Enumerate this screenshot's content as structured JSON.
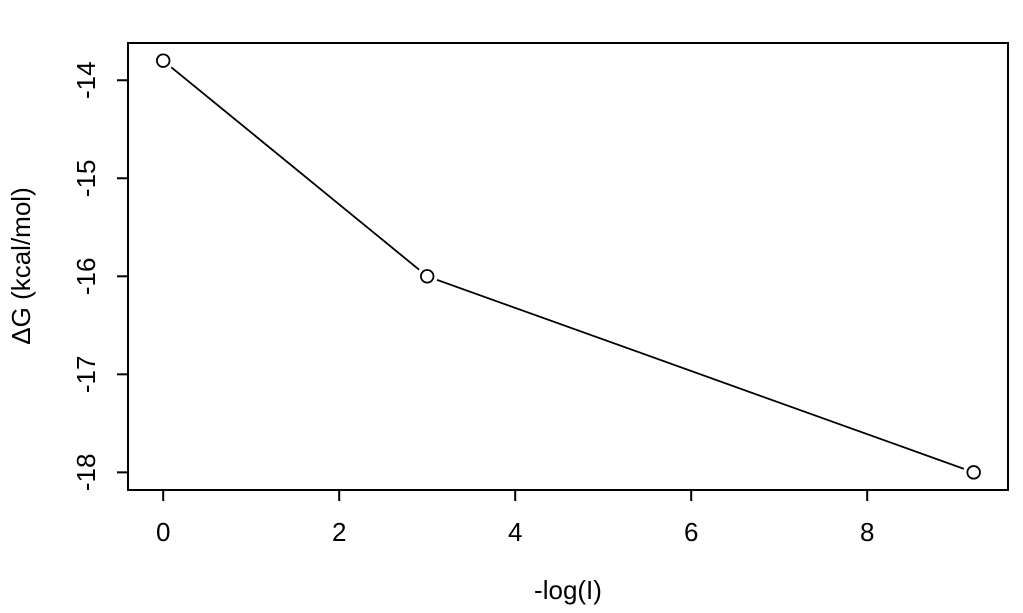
{
  "chart_data": {
    "type": "line",
    "title": "",
    "xlabel": "-log(I)",
    "ylabel": "ΔG (kcal/mol)",
    "x": [
      0,
      3,
      9.21
    ],
    "y": [
      -13.8,
      -16.0,
      -18.0
    ],
    "x_ticks": [
      0,
      2,
      4,
      6,
      8
    ],
    "y_ticks": [
      -14,
      -15,
      -16,
      -17,
      -18
    ],
    "xlim": [
      -0.4,
      9.6
    ],
    "ylim": [
      -18.18,
      -13.62
    ],
    "grid": false,
    "legend": "none",
    "marker": "open-circle",
    "marker_connect": "segments-with-gaps",
    "line_style": "solid",
    "color": "#000000",
    "background": "#ffffff"
  }
}
